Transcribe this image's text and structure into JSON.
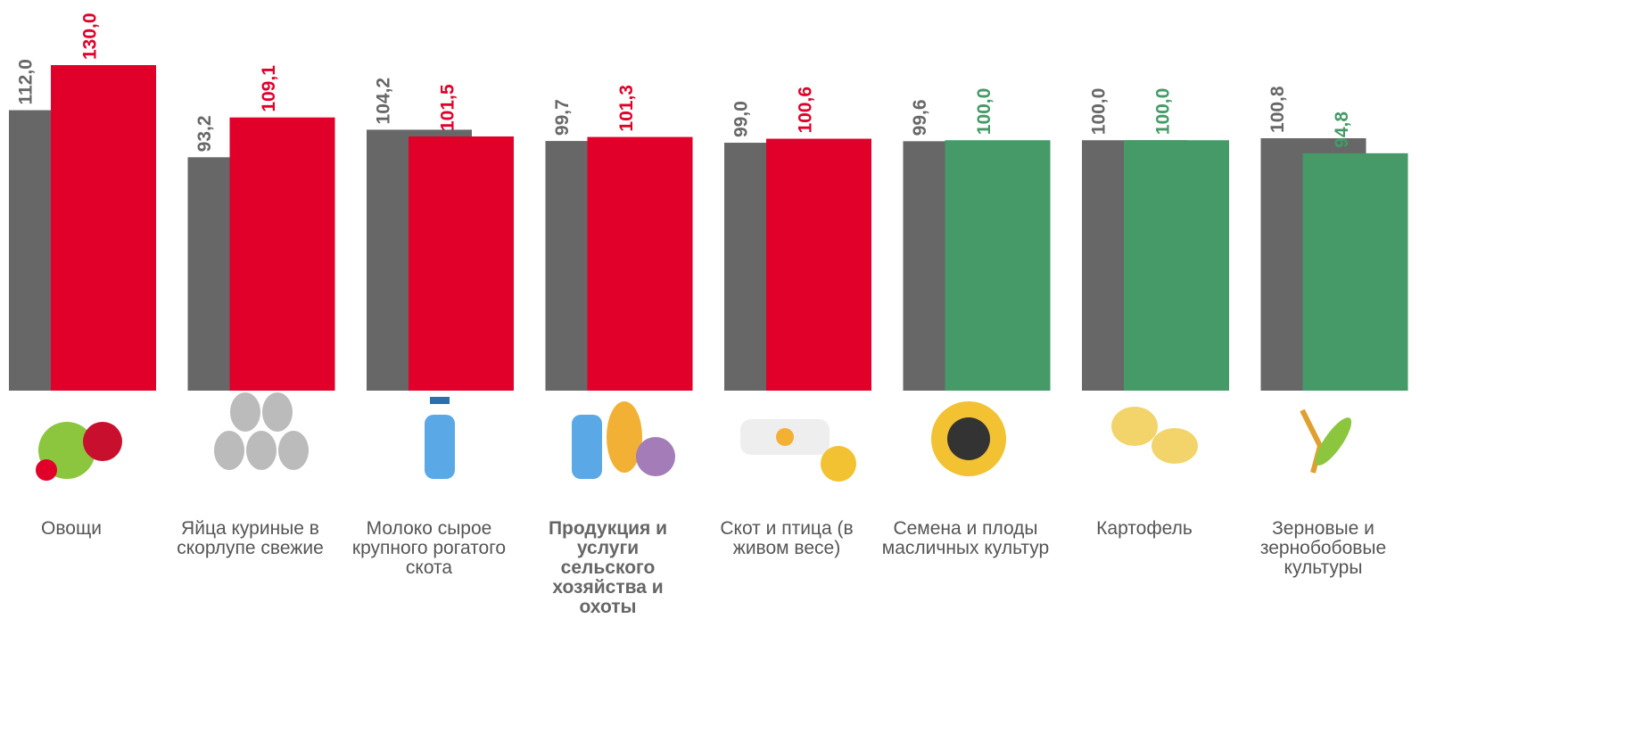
{
  "chart_data": {
    "type": "bar",
    "categories": [
      "Овощи",
      "Яйца куриные в скорлупе свежие",
      "Молоко сырое крупного рогатого скота",
      "Продукция и услуги сельского хозяйства и охоты",
      "Скот и птица (в живом весе)",
      "Семена и плоды масличных культур",
      "Картофель",
      "Зерновые и зернобобовые культуры"
    ],
    "series": [
      {
        "color": "#676767",
        "values": [
          112.0,
          93.2,
          104.2,
          99.7,
          99.0,
          99.6,
          100.0,
          100.8
        ],
        "value_labels": [
          "112,0",
          "93,2",
          "104,2",
          "99,7",
          "99,0",
          "99,6",
          "100,0",
          "100,8"
        ]
      },
      {
        "colors": [
          "#e0002a",
          "#e0002a",
          "#e0002a",
          "#e0002a",
          "#e0002a",
          "#459a67",
          "#459a67",
          "#459a67"
        ],
        "values": [
          130.0,
          109.1,
          101.5,
          101.3,
          100.6,
          100.0,
          100.0,
          94.8
        ],
        "value_labels": [
          "130,0",
          "109,1",
          "101,5",
          "101,3",
          "100,6",
          "100,0",
          "100,0",
          "94,8"
        ]
      }
    ],
    "ylim": [
      0,
      130
    ]
  }
}
